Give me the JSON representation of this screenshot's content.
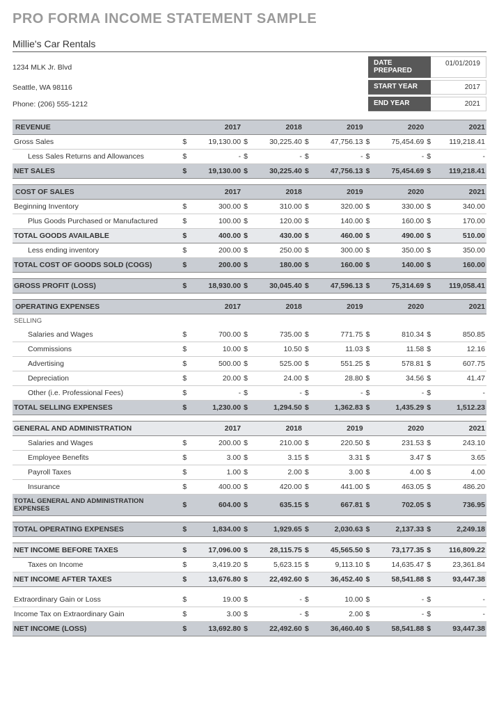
{
  "title": "PRO FORMA INCOME STATEMENT SAMPLE",
  "company": {
    "name": "Millie's Car Rentals",
    "address1": "1234 MLK Jr. Blvd",
    "address2": "Seattle, WA 98116",
    "phone": "Phone: (206) 555-1212"
  },
  "meta": {
    "date_prepared_label": "DATE PREPARED",
    "date_prepared": "01/01/2019",
    "start_year_label": "START YEAR",
    "start_year": "2017",
    "end_year_label": "END YEAR",
    "end_year": "2021"
  },
  "years": [
    "2017",
    "2018",
    "2019",
    "2020",
    "2021"
  ],
  "revenue": {
    "header": "REVENUE",
    "gross_sales": {
      "label": "Gross Sales",
      "v": [
        "19,130.00",
        "30,225.40",
        "47,756.13",
        "75,454.69",
        "119,218.41"
      ]
    },
    "returns": {
      "label": "Less Sales Returns and Allowances",
      "v": [
        "-",
        "-",
        "-",
        "-",
        "-"
      ]
    },
    "net_sales": {
      "label": "NET SALES",
      "v": [
        "19,130.00",
        "30,225.40",
        "47,756.13",
        "75,454.69",
        "119,218.41"
      ]
    }
  },
  "cogs": {
    "header": "COST OF SALES",
    "begin_inv": {
      "label": "Beginning Inventory",
      "v": [
        "300.00",
        "310.00",
        "320.00",
        "330.00",
        "340.00"
      ]
    },
    "goods_purch": {
      "label": "Plus Goods Purchased or Manufactured",
      "v": [
        "100.00",
        "120.00",
        "140.00",
        "160.00",
        "170.00"
      ]
    },
    "goods_avail": {
      "label": "TOTAL GOODS AVAILABLE",
      "v": [
        "400.00",
        "430.00",
        "460.00",
        "490.00",
        "510.00"
      ]
    },
    "end_inv": {
      "label": "Less ending inventory",
      "v": [
        "200.00",
        "250.00",
        "300.00",
        "350.00",
        "350.00"
      ]
    },
    "total_cogs": {
      "label": "TOTAL COST OF GOODS SOLD (COGS)",
      "v": [
        "200.00",
        "180.00",
        "160.00",
        "140.00",
        "160.00"
      ]
    },
    "gross_profit": {
      "label": "GROSS PROFIT (LOSS)",
      "v": [
        "18,930.00",
        "30,045.40",
        "47,596.13",
        "75,314.69",
        "119,058.41"
      ]
    }
  },
  "opex": {
    "header": "OPERATING EXPENSES",
    "selling_label": "SELLING",
    "salaries": {
      "label": "Salaries and Wages",
      "v": [
        "700.00",
        "735.00",
        "771.75",
        "810.34",
        "850.85"
      ]
    },
    "commissions": {
      "label": "Commissions",
      "v": [
        "10.00",
        "10.50",
        "11.03",
        "11.58",
        "12.16"
      ]
    },
    "advertising": {
      "label": "Advertising",
      "v": [
        "500.00",
        "525.00",
        "551.25",
        "578.81",
        "607.75"
      ]
    },
    "depreciation": {
      "label": "Depreciation",
      "v": [
        "20.00",
        "24.00",
        "28.80",
        "34.56",
        "41.47"
      ]
    },
    "other": {
      "label": "Other  (i.e. Professional Fees)",
      "v": [
        "-",
        "-",
        "-",
        "-",
        "-"
      ]
    },
    "total_selling": {
      "label": "TOTAL SELLING EXPENSES",
      "v": [
        "1,230.00",
        "1,294.50",
        "1,362.83",
        "1,435.29",
        "1,512.23"
      ]
    }
  },
  "ga": {
    "header": "GENERAL AND ADMINISTRATION",
    "salaries": {
      "label": "Salaries and Wages",
      "v": [
        "200.00",
        "210.00",
        "220.50",
        "231.53",
        "243.10"
      ]
    },
    "benefits": {
      "label": "Employee Benefits",
      "v": [
        "3.00",
        "3.15",
        "3.31",
        "3.47",
        "3.65"
      ]
    },
    "payroll": {
      "label": "Payroll Taxes",
      "v": [
        "1.00",
        "2.00",
        "3.00",
        "4.00",
        "4.00"
      ]
    },
    "insurance": {
      "label": "Insurance",
      "v": [
        "400.00",
        "420.00",
        "441.00",
        "463.05",
        "486.20"
      ]
    },
    "total_ga": {
      "label": "TOTAL GENERAL AND ADMINISTRATION EXPENSES",
      "v": [
        "604.00",
        "635.15",
        "667.81",
        "702.05",
        "736.95"
      ]
    },
    "total_opex": {
      "label": "TOTAL OPERATING EXPENSES",
      "v": [
        "1,834.00",
        "1,929.65",
        "2,030.63",
        "2,137.33",
        "2,249.18"
      ]
    }
  },
  "ni": {
    "before_tax": {
      "label": "NET INCOME BEFORE TAXES",
      "v": [
        "17,096.00",
        "28,115.75",
        "45,565.50",
        "73,177.35",
        "116,809.22"
      ]
    },
    "taxes": {
      "label": "Taxes on Income",
      "v": [
        "3,419.20",
        "5,623.15",
        "9,113.10",
        "14,635.47",
        "23,361.84"
      ]
    },
    "after_tax": {
      "label": "NET INCOME AFTER TAXES",
      "v": [
        "13,676.80",
        "22,492.60",
        "36,452.40",
        "58,541.88",
        "93,447.38"
      ]
    },
    "extra_gain": {
      "label": "Extraordinary Gain or Loss",
      "v": [
        "19.00",
        "-",
        "10.00",
        "-",
        "-"
      ]
    },
    "extra_tax": {
      "label": "Income Tax on Extraordinary Gain",
      "v": [
        "3.00",
        "-",
        "2.00",
        "-",
        "-"
      ]
    },
    "net_income": {
      "label": "NET INCOME (LOSS)",
      "v": [
        "13,692.80",
        "22,492.60",
        "36,460.40",
        "58,541.88",
        "93,447.38"
      ]
    }
  },
  "colors": {
    "header_bg": "#c9cdd3",
    "sub_bg": "#e7e9ec",
    "meta_bg": "#585858",
    "title_color": "#9a9a9a"
  }
}
